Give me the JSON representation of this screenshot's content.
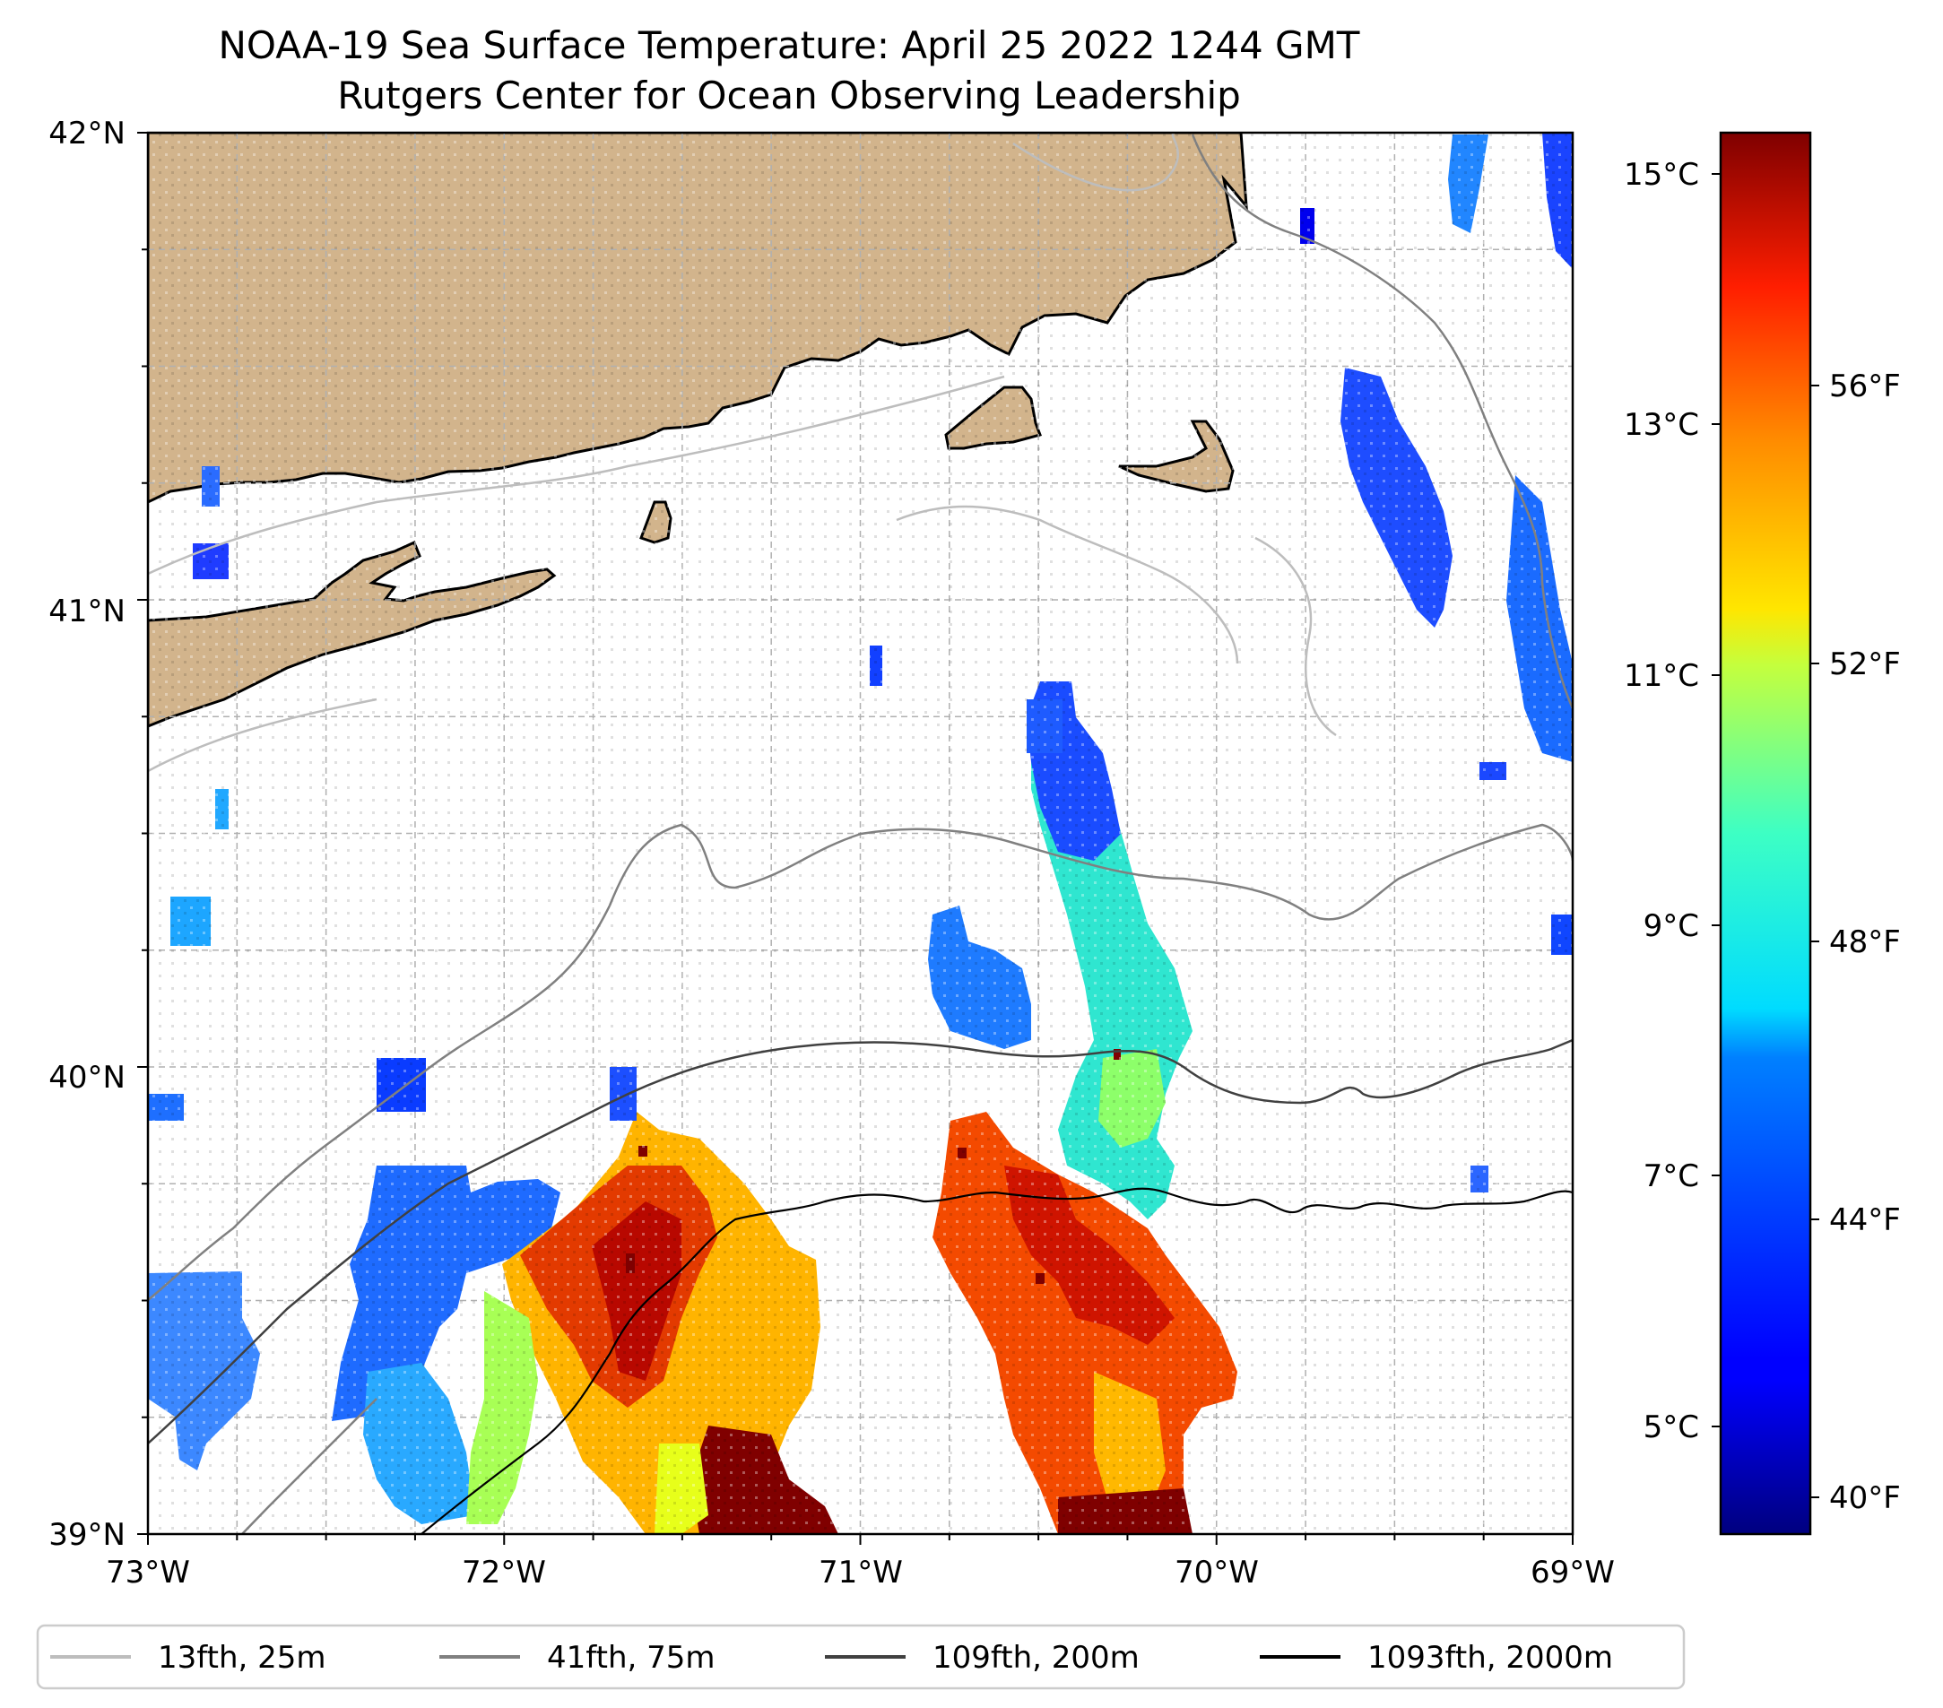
{
  "title": "NOAA-19 Sea Surface Temperature: April 25 2022 1244 GMT",
  "subtitle": "Rutgers Center for Ocean Observing Leadership",
  "map": {
    "lon_range": [
      -73,
      -69
    ],
    "lat_range": [
      39,
      42
    ],
    "lon_ticks": [
      "73°W",
      "72°W",
      "71°W",
      "70°W",
      "69°W"
    ],
    "lat_ticks": [
      "42°N",
      "41°N",
      "40°N",
      "39°N"
    ],
    "gridlines": true,
    "land_color": "#d2b48c"
  },
  "colorbar": {
    "colormap": "jet",
    "celsius_labels": [
      "15°C",
      "13°C",
      "11°C",
      "9°C",
      "7°C",
      "5°C"
    ],
    "fahrenheit_labels": [
      "56°F",
      "52°F",
      "48°F",
      "44°F",
      "40°F"
    ]
  },
  "legend": {
    "placement": "bottom",
    "items": [
      {
        "label": "13fth, 25m",
        "color": "#bdbdbd"
      },
      {
        "label": "41fth, 75m",
        "color": "#808080"
      },
      {
        "label": "109fth, 200m",
        "color": "#404040"
      },
      {
        "label": "1093fth, 2000m",
        "color": "#000000"
      }
    ]
  }
}
